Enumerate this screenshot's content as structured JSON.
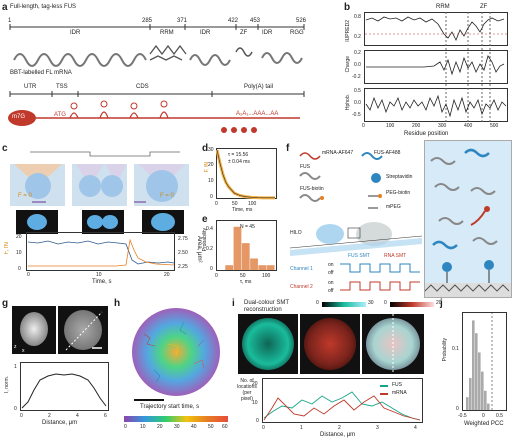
{
  "panel_a": {
    "letter": "a",
    "title": "Full-length, tag-less FUS",
    "ticks": [
      "1",
      "285",
      "371",
      "422",
      "453",
      "526"
    ],
    "domains": [
      "IDR",
      "RRM",
      "IDR",
      "ZF",
      "IDR",
      "RGG"
    ],
    "domain_extra": [
      "IDR",
      "ZF"
    ],
    "mrna_title": "BBT-labelled FL mRNA",
    "mrna_regions": [
      "UTR",
      "TSS",
      "CDS",
      "Poly(A) tail"
    ],
    "cap": "m7G",
    "start": "ATG",
    "polyA": "A₂A₁...AAA...AA"
  },
  "panel_b": {
    "letter": "b",
    "top_labels": [
      "RRM",
      "ZF"
    ],
    "ylabels": [
      "IUPRED2",
      "Charge",
      "Hphob."
    ],
    "xlabel": "Residue position",
    "xticks": [
      "0",
      "100",
      "200",
      "300",
      "400",
      "500"
    ],
    "yticks_top": [
      "0.8",
      "0.2"
    ],
    "yticks_mid": [
      "0.2",
      "0.0",
      "-0.2"
    ],
    "yticks_bot": [
      "0.5",
      "0.0",
      "-0.5"
    ]
  },
  "panel_c": {
    "letter": "c",
    "f0_left": "F = 0",
    "f0_right": "F = 0",
    "ylabel_left": "F, fN",
    "ylabel_right": "Area, μm²",
    "xlabel": "Time, s",
    "xticks": [
      "0",
      "10",
      "20"
    ],
    "yticks_left": [
      "0",
      "10",
      "20"
    ],
    "yticks_right": [
      "2.25",
      "2.50",
      "2.75"
    ]
  },
  "panel_d": {
    "letter": "d",
    "annot_tau": "τ = 15.56",
    "annot_err": "± 0.04 ms",
    "ylabel": "F, fN",
    "xlabel": "Time, ms",
    "xticks": [
      "0",
      "50",
      "100"
    ],
    "yticks": [
      "0",
      "10",
      "20",
      "30"
    ]
  },
  "panel_e": {
    "letter": "e",
    "n_label": "N = 45",
    "ylabel": "Probability",
    "xlabel": "τ, ms",
    "xticks": [
      "0",
      "50",
      "100"
    ],
    "yticks": [
      "0",
      "0.2",
      "0.4"
    ]
  },
  "panel_f": {
    "letter": "f",
    "legend": [
      "mRNA-AF647",
      "FUS-AF488",
      "FUS",
      "Streptavidin",
      "FUS-biotin",
      "PEG-biotin",
      "mPEG"
    ],
    "hilo": "HILO",
    "fus_smt": "FUS SMT",
    "rna_smt": "RNA SMT",
    "ch1": "Channel 1",
    "ch2": "Channel 2",
    "on": "on",
    "off": "off"
  },
  "panel_g": {
    "letter": "g",
    "ylabel": "I, norm.",
    "xlabel": "Distance, μm",
    "xticks": [
      "0",
      "2",
      "4",
      "6"
    ],
    "yticks": [
      "0",
      "1"
    ],
    "axes_z": "z",
    "axes_x": "x"
  },
  "panel_h": {
    "letter": "h",
    "caption": "Trajectory start time, s",
    "ticks": [
      "0",
      "10",
      "20",
      "30",
      "40",
      "50",
      "60"
    ]
  },
  "panel_i": {
    "letter": "i",
    "title_line1": "Dual-colour SMT",
    "title_line2": "reconstruction",
    "cb1_ticks": [
      "0",
      "30"
    ],
    "cb2_ticks": [
      "0",
      "20"
    ],
    "ylabel": "No. of locations (per pixel)",
    "xlabel": "Distance, μm",
    "xticks": [
      "0",
      "1",
      "2",
      "3",
      "4"
    ],
    "yticks": [
      "0",
      "10",
      "20"
    ],
    "legend": [
      "FUS",
      "mRNA"
    ]
  },
  "panel_j": {
    "letter": "j",
    "ylabel": "Probability",
    "xlabel": "Weighted PCC",
    "xticks": [
      "-0.5",
      "0",
      "0.5"
    ],
    "yticks": [
      "0",
      "0.1"
    ]
  },
  "chart_data": [
    {
      "type": "line",
      "panel": "d",
      "xlabel": "Time, ms",
      "ylabel": "F, fN",
      "x": [
        0,
        10,
        20,
        30,
        40,
        60,
        80,
        100,
        120,
        140,
        160,
        180,
        200
      ],
      "values": [
        30,
        22,
        15,
        10,
        7,
        3,
        1.5,
        0.8,
        0.4,
        0.2,
        0.1,
        0.1,
        0.1
      ],
      "xlim": [
        0,
        200
      ],
      "ylim": [
        0,
        30
      ]
    },
    {
      "type": "bar",
      "panel": "e",
      "xlabel": "τ, ms",
      "ylabel": "Probability",
      "categories": [
        "0-10",
        "10-20",
        "20-30",
        "30-40",
        "40-50",
        "50-60",
        "60-70"
      ],
      "values": [
        0.0,
        0.05,
        0.45,
        0.28,
        0.12,
        0.05,
        0.05
      ],
      "ylim": [
        0,
        0.5
      ]
    },
    {
      "type": "bar",
      "panel": "j",
      "xlabel": "Weighted PCC",
      "ylabel": "Probability",
      "categories": [
        "-0.5",
        "-0.45",
        "-0.4",
        "-0.35",
        "-0.3",
        "-0.25",
        "-0.2",
        "-0.15"
      ],
      "values": [
        0.02,
        0.05,
        0.14,
        0.12,
        0.09,
        0.06,
        0.03,
        0.01
      ],
      "ylim": [
        0,
        0.15
      ]
    }
  ]
}
